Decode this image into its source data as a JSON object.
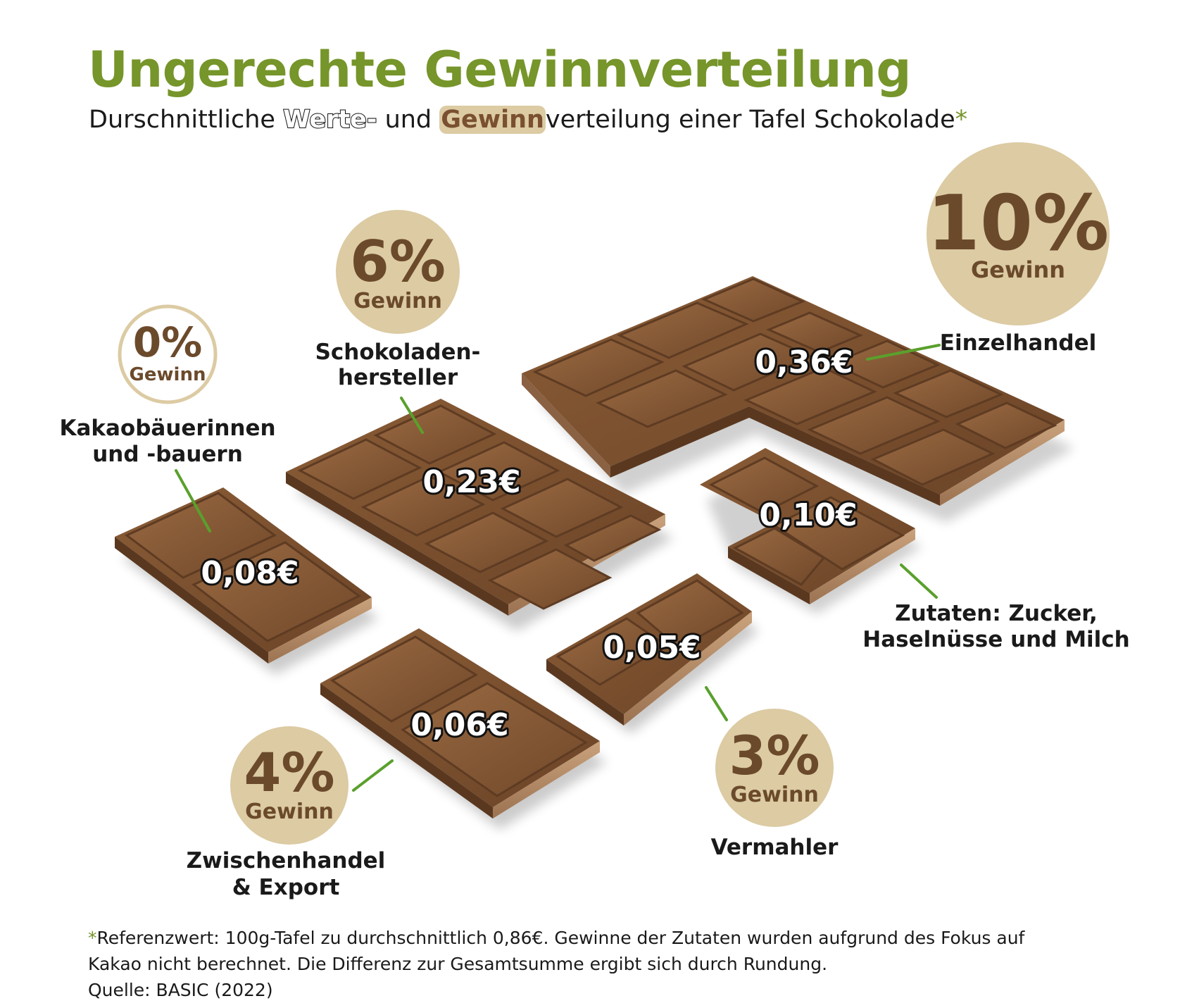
{
  "title": "Ungerechte Gewinnverteilung",
  "subtitle": {
    "prefix": "Durschnittliche ",
    "werte": "Werte-",
    "middle": " und ",
    "gewinn": "Gewinn",
    "suffix": "verteilung einer Tafel Schokolade",
    "asterisk": "*"
  },
  "colors": {
    "title_green": "#76952a",
    "leader_green": "#5aa02c",
    "badge_beige": "#dccba3",
    "badge_text": "#6b4a2b",
    "chocolate": "#7a5030"
  },
  "stages": [
    {
      "id": "kakao",
      "label_lines": [
        "Kakaobäuerinnen",
        "und -bauern"
      ],
      "price": "0,08€",
      "profit_pct": "0%",
      "profit_label": "Gewinn"
    },
    {
      "id": "hersteller",
      "label_lines": [
        "Schokoladen-",
        "hersteller"
      ],
      "price": "0,23€",
      "profit_pct": "6%",
      "profit_label": "Gewinn"
    },
    {
      "id": "einzelhandel",
      "label_lines": [
        "Einzelhandel"
      ],
      "price": "0,36€",
      "profit_pct": "10%",
      "profit_label": "Gewinn"
    },
    {
      "id": "zutaten",
      "label_lines": [
        "Zutaten: Zucker,",
        "Haselnüsse und Milch"
      ],
      "price": "0,10€"
    },
    {
      "id": "vermahler",
      "label_lines": [
        "Vermahler"
      ],
      "price": "0,05€",
      "profit_pct": "3%",
      "profit_label": "Gewinn"
    },
    {
      "id": "zwischenhandel",
      "label_lines": [
        "Zwischenhandel",
        "& Export"
      ],
      "price": "0,06€",
      "profit_pct": "4%",
      "profit_label": "Gewinn"
    }
  ],
  "footnote": {
    "asterisk": "*",
    "line1": "Referenzwert: 100g-Tafel zu durchschnittlich 0,86€. Gewinne der Zutaten wurden aufgrund des Fokus auf",
    "line2": "Kakao nicht berechnet. Die Differenz zur Gesamtsumme ergibt sich durch Rundung.",
    "source": "Quelle: BASIC (2022)"
  }
}
